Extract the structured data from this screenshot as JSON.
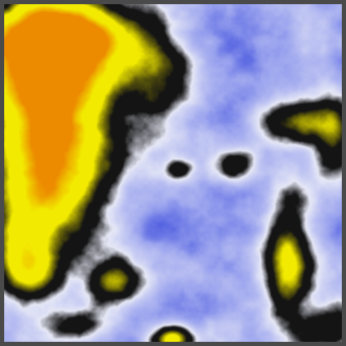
{
  "image": {
    "kind": "procedural noise heightmap with false-color palette",
    "palette": {
      "frame": "#4a4a4a",
      "deep_blue": "#4f5ee0",
      "mid_blue": "#9aa3ee",
      "pale": "#e6e8f6",
      "dark": "#141414",
      "olive": "#6f6a08",
      "yellow": "#f2ea00",
      "orange": "#ec8a00"
    },
    "seed": 7
  }
}
